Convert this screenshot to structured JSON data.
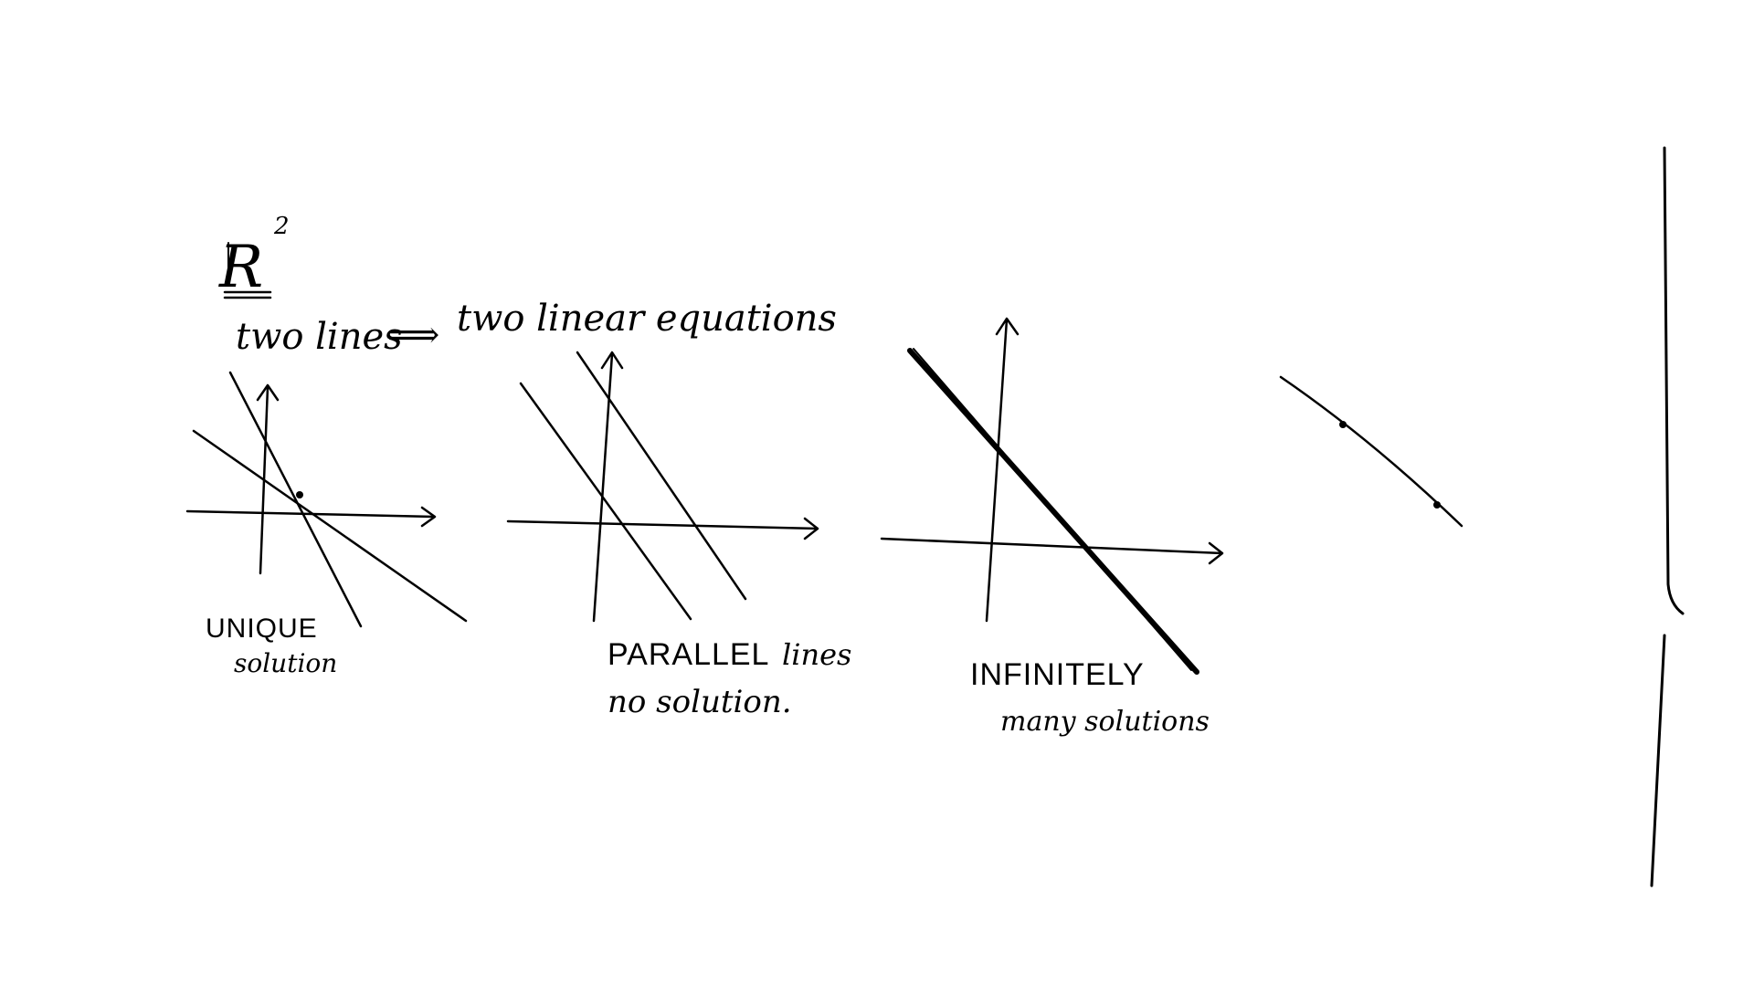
{
  "header": {
    "space_symbol": "R",
    "space_exponent": "2",
    "subtitle_left": "two lines",
    "implies_symbol": "⟹",
    "subtitle_right": "two linear equations"
  },
  "panels": [
    {
      "caption_main": "UNIQUE",
      "caption_sub": "solution"
    },
    {
      "caption_main": "PARALLEL",
      "caption_tail": "lines",
      "caption_sub": "no solution."
    },
    {
      "caption_main": "INFINITELY",
      "caption_sub": "many solutions"
    }
  ],
  "colors": {
    "ink": "#000000",
    "background": "#ffffff"
  }
}
